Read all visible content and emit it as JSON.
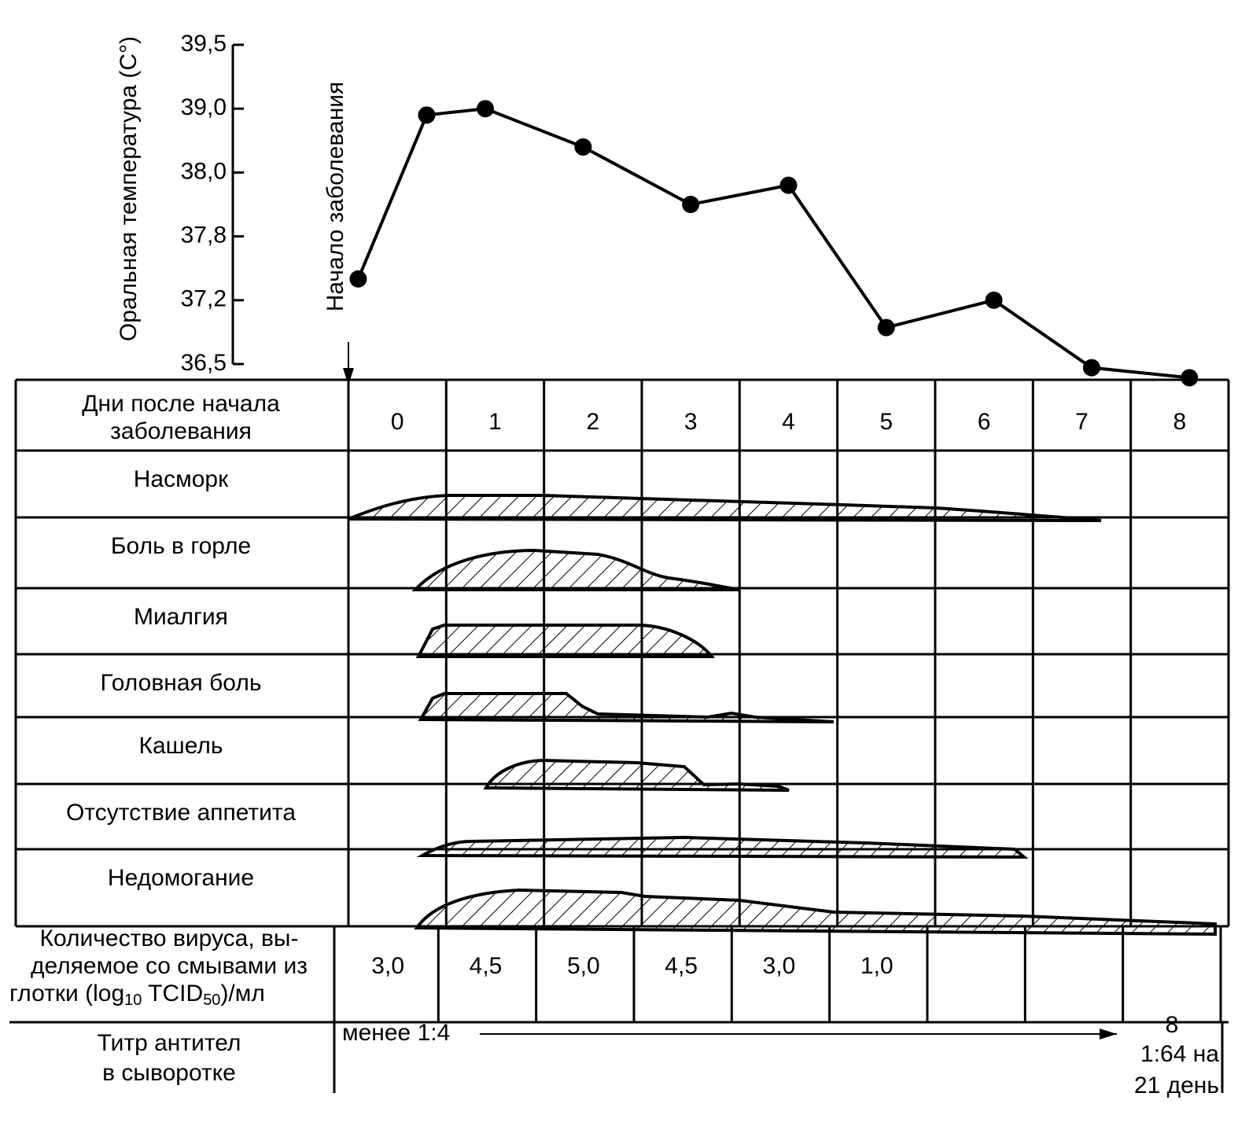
{
  "chart_data": {
    "type": "line",
    "y_label": "Оральная температура (С°)",
    "annotation": "Начало заболевания",
    "x": [
      0.1,
      0.8,
      1.4,
      2.4,
      3.5,
      4.5,
      5.5,
      6.6,
      7.6,
      8.6
    ],
    "values": [
      37.4,
      38.9,
      39.0,
      38.4,
      37.9,
      37.96,
      36.9,
      37.2,
      36.46,
      36.35
    ],
    "color": "#000000",
    "ylim": [
      36.5,
      39.5
    ],
    "yticks": [
      {
        "value": 36.5,
        "label": "36,5"
      },
      {
        "value": 37.2,
        "label": "37,2"
      },
      {
        "value": 37.8,
        "label": "37,8"
      },
      {
        "value": 38.0,
        "label": "38,0"
      },
      {
        "value": 39.0,
        "label": "39,0"
      },
      {
        "value": 39.5,
        "label": "39,5"
      }
    ]
  },
  "table": {
    "header_label": [
      "Дни после начала",
      "заболевания"
    ],
    "days": [
      "0",
      "1",
      "2",
      "3",
      "4",
      "5",
      "6",
      "7",
      "8"
    ],
    "symptoms": [
      "Насморк",
      "Боль в горле",
      "Миалгия",
      "Головная боль",
      "Кашель",
      "Отсутствие аппетита",
      "Недомогание"
    ],
    "virus_label": [
      "Количество вируса, вы-",
      "деляемое со смывами из",
      "глотки (log",
      "10",
      " TCID",
      "50",
      ")/мл"
    ],
    "virus": [
      "3,0",
      "4,5",
      "5,0",
      "4,5",
      "3,0",
      "1,0"
    ],
    "titer_label": [
      "Титр антител",
      "в сыворотке"
    ],
    "titer_start": "менее 1:4",
    "titer_end_day": "8",
    "titer_end": [
      "1:64 на",
      "21 день"
    ]
  }
}
